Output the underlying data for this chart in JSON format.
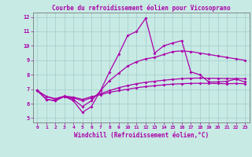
{
  "title": "Courbe du refroidissement éolien pour Vicosoprano",
  "xlabel": "Windchill (Refroidissement éolien,°C)",
  "xlim": [
    -0.5,
    23.5
  ],
  "ylim": [
    4.7,
    12.3
  ],
  "yticks": [
    5,
    6,
    7,
    8,
    9,
    10,
    11,
    12
  ],
  "xticks": [
    0,
    1,
    2,
    3,
    4,
    5,
    6,
    7,
    8,
    9,
    10,
    11,
    12,
    13,
    14,
    15,
    16,
    17,
    18,
    19,
    20,
    21,
    22,
    23
  ],
  "bg_color": "#c8eae4",
  "line_color": "#aa00aa",
  "grid_color": "#a0cccc",
  "axes_color": "#666666",
  "line1": [
    6.9,
    6.3,
    6.2,
    6.5,
    6.2,
    5.4,
    5.8,
    6.9,
    8.2,
    9.4,
    10.7,
    11.0,
    11.9,
    9.5,
    10.0,
    10.2,
    10.35,
    8.2,
    8.0,
    7.5,
    7.5,
    7.55,
    7.7,
    7.5
  ],
  "line2": [
    6.9,
    6.3,
    6.2,
    6.5,
    6.3,
    5.8,
    6.2,
    6.9,
    7.6,
    8.1,
    8.6,
    8.9,
    9.1,
    9.2,
    9.4,
    9.6,
    9.65,
    9.6,
    9.5,
    9.4,
    9.3,
    9.2,
    9.1,
    9.0
  ],
  "line3": [
    6.9,
    6.5,
    6.3,
    6.5,
    6.4,
    6.2,
    6.4,
    6.7,
    6.9,
    7.1,
    7.25,
    7.38,
    7.48,
    7.55,
    7.62,
    7.68,
    7.73,
    7.76,
    7.77,
    7.76,
    7.75,
    7.74,
    7.74,
    7.72
  ],
  "line4": [
    6.9,
    6.5,
    6.35,
    6.52,
    6.45,
    6.3,
    6.48,
    6.62,
    6.78,
    6.9,
    7.0,
    7.1,
    7.18,
    7.24,
    7.3,
    7.35,
    7.38,
    7.4,
    7.41,
    7.4,
    7.39,
    7.38,
    7.39,
    7.38
  ]
}
